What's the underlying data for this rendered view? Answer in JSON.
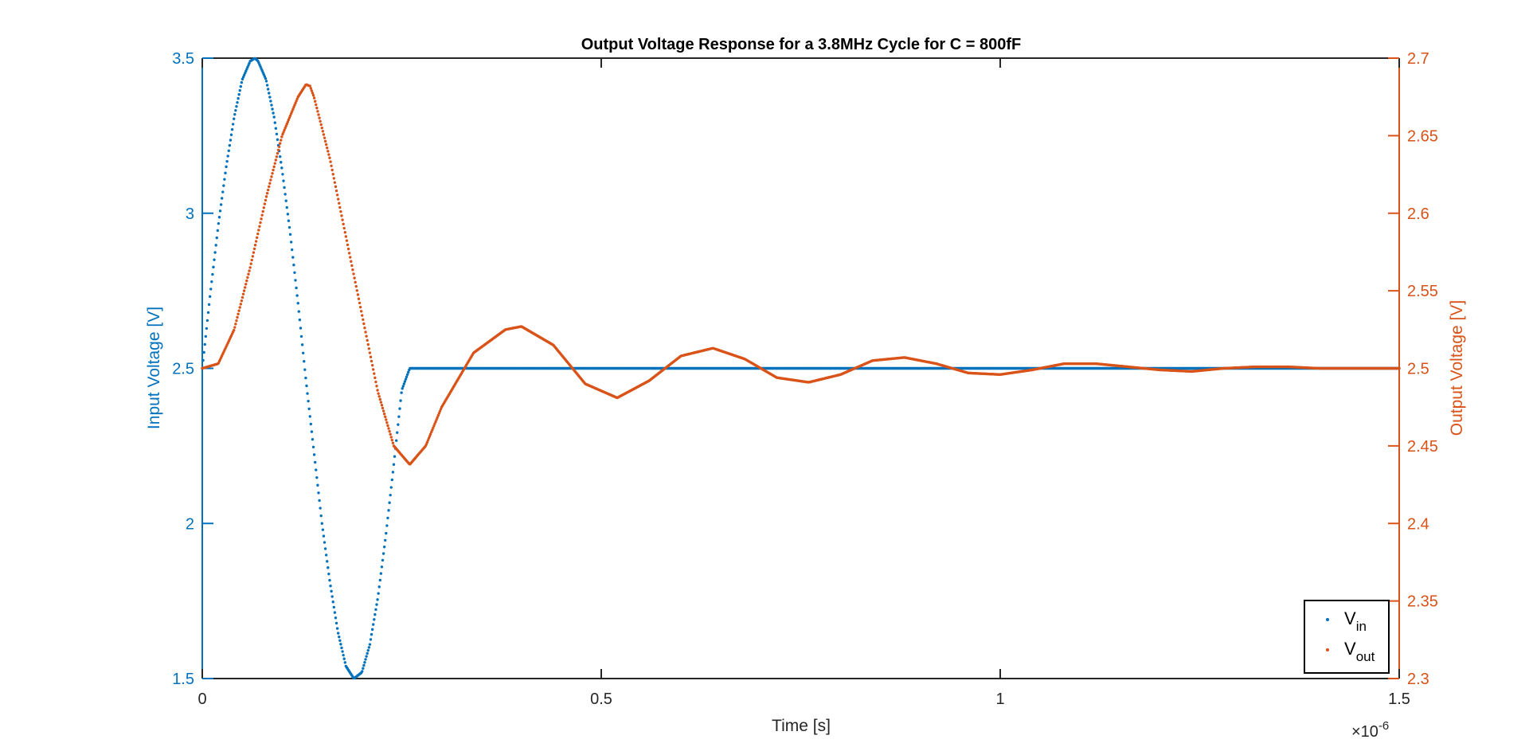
{
  "chart_data": {
    "type": "scatter",
    "title": "Output Voltage Response for a 3.8MHz Cycle for C = 800fF",
    "xlabel": "Time [s]",
    "x_exponent_label": "×10",
    "x_exponent_power": "-6",
    "xlim": [
      0,
      1.5e-06
    ],
    "x_ticks": [
      0,
      5e-07,
      1e-06,
      1.5e-06
    ],
    "x_tick_labels": [
      "0",
      "0.5",
      "1",
      "1.5"
    ],
    "ylabel_left": "Input Voltage [V]",
    "ylim_left": [
      1.5,
      3.5
    ],
    "y_ticks_left": [
      1.5,
      2,
      2.5,
      3,
      3.5
    ],
    "y_tick_labels_left": [
      "1.5",
      "2",
      "2.5",
      "3",
      "3.5"
    ],
    "ylabel_right": "Output Voltage [V]",
    "ylim_right": [
      2.3,
      2.7
    ],
    "y_ticks_right": [
      2.3,
      2.35,
      2.4,
      2.45,
      2.5,
      2.55,
      2.6,
      2.65,
      2.7
    ],
    "y_tick_labels_right": [
      "2.3",
      "2.35",
      "2.4",
      "2.45",
      "2.5",
      "2.55",
      "2.6",
      "2.65",
      "2.7"
    ],
    "grid": false,
    "legend_position": "bottom-right",
    "series": [
      {
        "name": "V_in",
        "legend_main": "V",
        "legend_sub": "in",
        "axis": "left",
        "color": "#0072BD",
        "x": [
          0,
          1e-08,
          2e-08,
          3e-08,
          4e-08,
          5e-08,
          6e-08,
          6.6e-08,
          7e-08,
          8e-08,
          9e-08,
          1e-07,
          1.1e-07,
          1.2e-07,
          1.3e-07,
          1.4e-07,
          1.5e-07,
          1.6e-07,
          1.7e-07,
          1.8e-07,
          1.9e-07,
          2e-07,
          2.1e-07,
          2.2e-07,
          2.3e-07,
          2.4e-07,
          2.5e-07,
          2.6e-07,
          2.63e-07,
          3e-07,
          4e-07,
          5e-07,
          6e-07,
          7e-07,
          8e-07,
          9e-07,
          1e-06,
          1.1e-06,
          1.2e-06,
          1.3e-06,
          1.4e-06,
          1.5e-06
        ],
        "y": [
          2.5,
          2.74,
          2.96,
          3.15,
          3.31,
          3.43,
          3.49,
          3.5,
          3.49,
          3.43,
          3.31,
          3.14,
          2.94,
          2.71,
          2.46,
          2.23,
          2.0,
          1.81,
          1.65,
          1.54,
          1.5,
          1.52,
          1.61,
          1.76,
          1.96,
          2.19,
          2.43,
          2.5,
          2.5,
          2.5,
          2.5,
          2.5,
          2.5,
          2.5,
          2.5,
          2.5,
          2.5,
          2.5,
          2.5,
          2.5,
          2.5,
          2.5
        ]
      },
      {
        "name": "V_out",
        "legend_main": "V",
        "legend_sub": "out",
        "axis": "right",
        "color": "#D95319",
        "x": [
          0,
          2e-08,
          4e-08,
          6e-08,
          8e-08,
          1e-07,
          1.2e-07,
          1.3e-07,
          1.35e-07,
          1.4e-07,
          1.6e-07,
          1.8e-07,
          2e-07,
          2.2e-07,
          2.4e-07,
          2.6e-07,
          2.8e-07,
          3e-07,
          3.4e-07,
          3.8e-07,
          4e-07,
          4.4e-07,
          4.8e-07,
          5.2e-07,
          5.6e-07,
          6e-07,
          6.4e-07,
          6.8e-07,
          7.2e-07,
          7.6e-07,
          8e-07,
          8.4e-07,
          8.8e-07,
          9.2e-07,
          9.6e-07,
          1e-06,
          1.04e-06,
          1.08e-06,
          1.12e-06,
          1.16e-06,
          1.2e-06,
          1.24e-06,
          1.28e-06,
          1.32e-06,
          1.36e-06,
          1.4e-06,
          1.44e-06,
          1.5e-06
        ],
        "y": [
          2.5,
          2.503,
          2.525,
          2.565,
          2.61,
          2.65,
          2.675,
          2.683,
          2.682,
          2.675,
          2.635,
          2.585,
          2.535,
          2.485,
          2.45,
          2.438,
          2.45,
          2.475,
          2.51,
          2.525,
          2.527,
          2.515,
          2.49,
          2.481,
          2.492,
          2.508,
          2.513,
          2.506,
          2.494,
          2.491,
          2.496,
          2.505,
          2.507,
          2.503,
          2.497,
          2.496,
          2.499,
          2.503,
          2.503,
          2.501,
          2.499,
          2.498,
          2.5,
          2.501,
          2.501,
          2.5,
          2.5,
          2.5
        ]
      }
    ]
  }
}
